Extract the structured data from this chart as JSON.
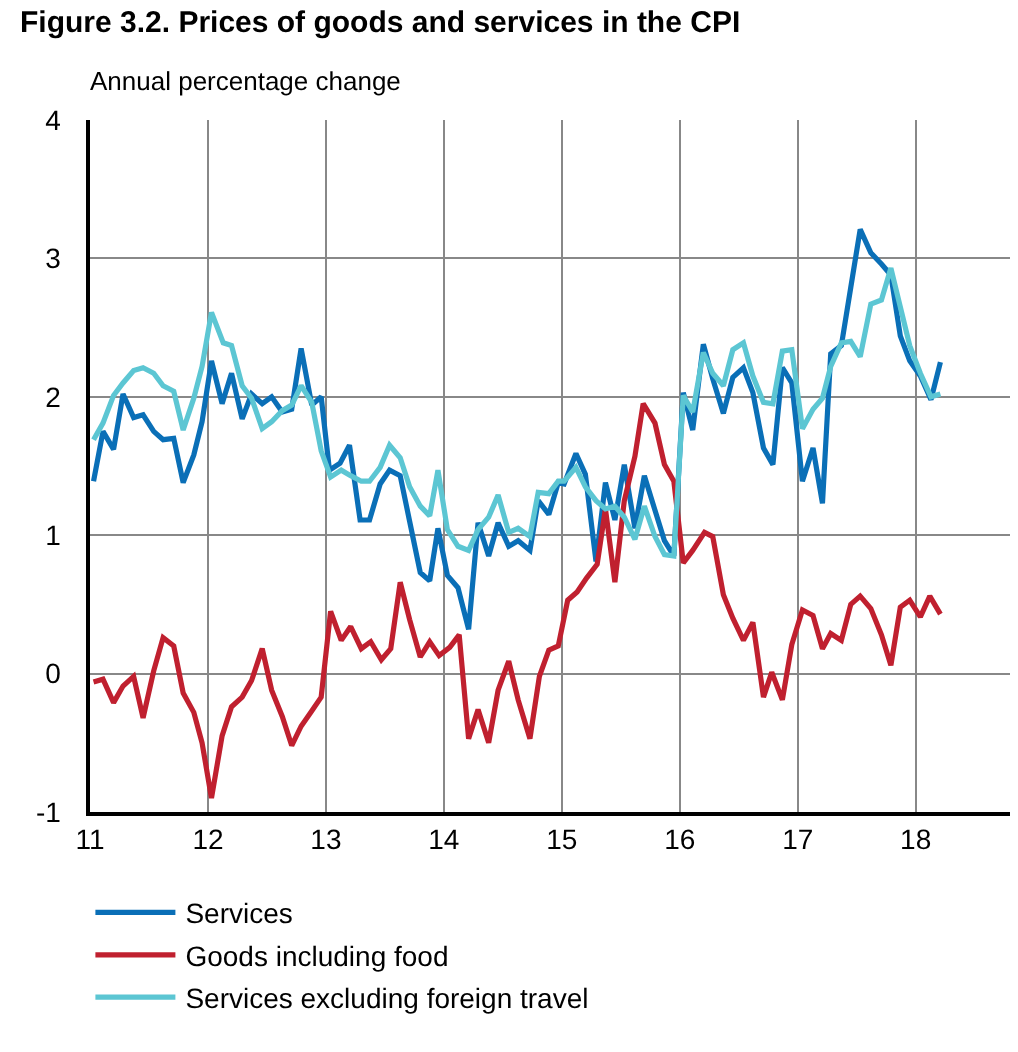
{
  "chart_data": {
    "type": "line",
    "title": "Figure 3.2. Prices of goods and services in the CPI",
    "subtitle": "Annual percentage change",
    "xlim": [
      11,
      18.8
    ],
    "xticks": [
      11,
      12,
      13,
      14,
      15,
      16,
      17,
      18
    ],
    "ylim": [
      -1,
      4
    ],
    "yticks": [
      -1,
      0,
      1,
      2,
      3,
      4
    ],
    "grid": true,
    "legend": "bottom",
    "line_style": "solid",
    "series": [
      {
        "name": "Services",
        "color": "#0a6fb7",
        "x": [
          11.03,
          11.11,
          11.2,
          11.28,
          11.37,
          11.45,
          11.54,
          11.62,
          11.71,
          11.79,
          11.88,
          11.95,
          12.03,
          12.12,
          12.2,
          12.29,
          12.37,
          12.46,
          12.54,
          12.63,
          12.71,
          12.79,
          12.88,
          12.96,
          13.03,
          13.12,
          13.2,
          13.29,
          13.37,
          13.46,
          13.54,
          13.63,
          13.71,
          13.8,
          13.88,
          13.95,
          14.03,
          14.12,
          14.21,
          14.29,
          14.38,
          14.46,
          14.55,
          14.63,
          14.73,
          14.8,
          14.89,
          14.97,
          15.02,
          15.12,
          15.2,
          15.29,
          15.37,
          15.45,
          15.53,
          15.62,
          15.7,
          15.79,
          15.87,
          15.95,
          16.03,
          16.11,
          16.2,
          16.28,
          16.37,
          16.45,
          16.54,
          16.62,
          16.71,
          16.79,
          16.87,
          16.95,
          17.04,
          17.13,
          17.21,
          17.28,
          17.37,
          17.45,
          17.53,
          17.62,
          17.71,
          17.79,
          17.87,
          17.95,
          18.04,
          18.13,
          18.21
        ],
        "values": [
          1.39,
          1.75,
          1.62,
          2.02,
          1.85,
          1.87,
          1.75,
          1.69,
          1.7,
          1.38,
          1.58,
          1.82,
          2.26,
          1.95,
          2.17,
          1.84,
          2.02,
          1.95,
          2.0,
          1.89,
          1.91,
          2.35,
          1.94,
          2.0,
          1.47,
          1.52,
          1.65,
          1.11,
          1.11,
          1.37,
          1.47,
          1.43,
          1.1,
          0.73,
          0.67,
          1.05,
          0.71,
          0.62,
          0.32,
          1.09,
          0.85,
          1.09,
          0.92,
          0.96,
          0.89,
          1.25,
          1.15,
          1.38,
          1.37,
          1.59,
          1.44,
          0.81,
          1.38,
          1.11,
          1.51,
          1.05,
          1.43,
          1.18,
          0.96,
          0.85,
          2.03,
          1.76,
          2.38,
          2.13,
          1.88,
          2.14,
          2.21,
          2.03,
          1.63,
          1.51,
          2.21,
          2.1,
          1.39,
          1.63,
          1.23,
          2.31,
          2.37,
          2.79,
          3.21,
          3.04,
          2.96,
          2.88,
          2.44,
          2.26,
          2.15,
          1.98,
          2.25
        ]
      },
      {
        "name": "Goods including food",
        "color": "#c0202f",
        "x": [
          11.03,
          11.11,
          11.2,
          11.28,
          11.37,
          11.45,
          11.54,
          11.62,
          11.71,
          11.79,
          11.88,
          11.95,
          12.03,
          12.12,
          12.2,
          12.29,
          12.37,
          12.46,
          12.54,
          12.63,
          12.71,
          12.79,
          12.88,
          12.96,
          13.04,
          13.13,
          13.21,
          13.3,
          13.38,
          13.47,
          13.55,
          13.63,
          13.71,
          13.8,
          13.88,
          13.96,
          14.05,
          14.13,
          14.21,
          14.29,
          14.38,
          14.46,
          14.55,
          14.63,
          14.73,
          14.81,
          14.89,
          14.97,
          15.05,
          15.13,
          15.21,
          15.3,
          15.37,
          15.45,
          15.53,
          15.62,
          15.69,
          15.79,
          15.87,
          15.95,
          16.03,
          16.11,
          16.21,
          16.28,
          16.37,
          16.45,
          16.54,
          16.62,
          16.71,
          16.78,
          16.87,
          16.95,
          17.04,
          17.13,
          17.21,
          17.28,
          17.37,
          17.45,
          17.53,
          17.62,
          17.71,
          17.79,
          17.87,
          17.95,
          18.04,
          18.12,
          18.21
        ],
        "values": [
          -0.06,
          -0.04,
          -0.21,
          -0.09,
          -0.02,
          -0.32,
          0.02,
          0.26,
          0.2,
          -0.14,
          -0.28,
          -0.5,
          -0.9,
          -0.45,
          -0.24,
          -0.17,
          -0.05,
          0.18,
          -0.12,
          -0.31,
          -0.52,
          -0.38,
          -0.27,
          -0.17,
          0.45,
          0.24,
          0.34,
          0.18,
          0.23,
          0.1,
          0.18,
          0.66,
          0.39,
          0.12,
          0.23,
          0.13,
          0.19,
          0.28,
          -0.47,
          -0.26,
          -0.5,
          -0.12,
          0.09,
          -0.19,
          -0.47,
          -0.02,
          0.17,
          0.2,
          0.53,
          0.59,
          0.69,
          0.79,
          1.19,
          0.66,
          1.25,
          1.57,
          1.95,
          1.81,
          1.51,
          1.39,
          0.8,
          0.89,
          1.02,
          0.99,
          0.57,
          0.4,
          0.24,
          0.37,
          -0.17,
          0.01,
          -0.19,
          0.21,
          0.46,
          0.42,
          0.18,
          0.29,
          0.24,
          0.5,
          0.56,
          0.47,
          0.28,
          0.06,
          0.48,
          0.53,
          0.41,
          0.56,
          0.43
        ]
      },
      {
        "name": "Services excluding foreign travel",
        "color": "#5cc6d3",
        "x": [
          11.03,
          11.11,
          11.2,
          11.28,
          11.37,
          11.45,
          11.54,
          11.62,
          11.71,
          11.79,
          11.88,
          11.95,
          12.03,
          12.13,
          12.2,
          12.29,
          12.37,
          12.46,
          12.54,
          12.63,
          12.71,
          12.79,
          12.88,
          12.96,
          13.04,
          13.13,
          13.21,
          13.3,
          13.37,
          13.46,
          13.54,
          13.63,
          13.71,
          13.8,
          13.88,
          13.95,
          14.03,
          14.12,
          14.21,
          14.29,
          14.38,
          14.46,
          14.55,
          14.63,
          14.73,
          14.8,
          14.89,
          14.97,
          15.02,
          15.12,
          15.2,
          15.29,
          15.37,
          15.45,
          15.53,
          15.62,
          15.7,
          15.79,
          15.87,
          15.95,
          16.03,
          16.11,
          16.2,
          16.28,
          16.37,
          16.45,
          16.54,
          16.62,
          16.71,
          16.79,
          16.87,
          16.95,
          17.04,
          17.13,
          17.21,
          17.28,
          17.37,
          17.45,
          17.53,
          17.62,
          17.71,
          17.79,
          17.87,
          17.95,
          18.04,
          18.13,
          18.21
        ],
        "values": [
          1.69,
          1.81,
          2.01,
          2.1,
          2.19,
          2.21,
          2.17,
          2.08,
          2.04,
          1.76,
          1.99,
          2.22,
          2.61,
          2.39,
          2.37,
          2.08,
          1.99,
          1.77,
          1.82,
          1.9,
          1.94,
          2.08,
          1.96,
          1.61,
          1.42,
          1.47,
          1.43,
          1.39,
          1.39,
          1.49,
          1.65,
          1.56,
          1.35,
          1.21,
          1.14,
          1.47,
          1.04,
          0.92,
          0.89,
          1.04,
          1.13,
          1.29,
          1.02,
          1.05,
          0.99,
          1.31,
          1.3,
          1.39,
          1.39,
          1.49,
          1.35,
          1.25,
          1.19,
          1.21,
          1.13,
          0.97,
          1.21,
          0.99,
          0.86,
          0.85,
          2.01,
          1.89,
          2.32,
          2.17,
          2.08,
          2.34,
          2.39,
          2.15,
          1.96,
          1.95,
          2.33,
          2.34,
          1.77,
          1.91,
          1.99,
          2.22,
          2.39,
          2.4,
          2.29,
          2.67,
          2.7,
          2.93,
          2.65,
          2.37,
          2.17,
          2.0,
          2.02
        ]
      }
    ]
  }
}
